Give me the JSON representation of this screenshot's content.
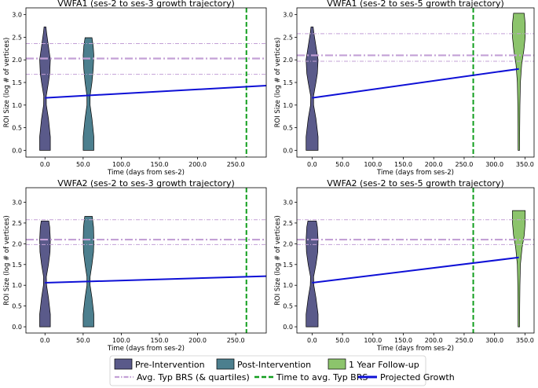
{
  "colors": {
    "pre": "#5a5a8a",
    "post": "#4c7f8e",
    "followup": "#8cc46c",
    "avg_line": "#c3a0d6",
    "time_line": "#119e1d",
    "projected": "#0e10d6"
  },
  "chart_data": [
    {
      "type": "violin",
      "title": "VWFA1  (ses-2 to ses-3 growth trajectory)",
      "xlabel": "Time (days from ses-2)",
      "ylabel": "ROI Size (log # of vertices)",
      "xlim": [
        -25,
        290
      ],
      "ylim": [
        -0.15,
        3.15
      ],
      "xticks": [
        0,
        50,
        100,
        150,
        200,
        250
      ],
      "xtick_labels": [
        "0.0",
        "50.0",
        "100.0",
        "150.0",
        "200.0",
        "250.0"
      ],
      "yticks": [
        0,
        0.5,
        1,
        1.5,
        2,
        2.5,
        3
      ],
      "ytick_labels": [
        "0.0",
        "0.5",
        "1.0",
        "1.5",
        "2.0",
        "2.5",
        "3.0"
      ],
      "violins": [
        {
          "group": "pre",
          "x": 0,
          "min": 0,
          "max": 2.73,
          "halfwidth": 8,
          "profile": [
            [
              0,
              0.85
            ],
            [
              0.3,
              0.85
            ],
            [
              0.7,
              0.55
            ],
            [
              1.0,
              0.22
            ],
            [
              1.2,
              0.2
            ],
            [
              1.5,
              0.55
            ],
            [
              1.7,
              0.75
            ],
            [
              2.0,
              0.85
            ],
            [
              2.3,
              0.55
            ],
            [
              2.6,
              0.25
            ],
            [
              2.73,
              0.15
            ]
          ]
        },
        {
          "group": "post",
          "x": 57,
          "min": 0,
          "max": 2.49,
          "halfwidth": 8,
          "profile": [
            [
              0,
              0.85
            ],
            [
              0.3,
              0.85
            ],
            [
              0.7,
              0.55
            ],
            [
              1.0,
              0.25
            ],
            [
              1.2,
              0.25
            ],
            [
              1.5,
              0.55
            ],
            [
              1.8,
              0.75
            ],
            [
              2.1,
              0.85
            ],
            [
              2.3,
              0.75
            ],
            [
              2.49,
              0.55
            ]
          ]
        }
      ],
      "avg_typ_brs": {
        "mean": 2.03,
        "quartiles": [
          1.68,
          2.36
        ]
      },
      "time_to_avg": 264,
      "projected_growth": {
        "x": [
          0,
          290
        ],
        "y": [
          1.16,
          1.43
        ]
      }
    },
    {
      "type": "violin",
      "title": "VWFA1  (ses-2 to ses-5 growth trajectory)",
      "xlabel": "Time (days from ses-2)",
      "ylabel": "ROI Size (log # of vertices)",
      "xlim": [
        -25,
        365
      ],
      "ylim": [
        -0.15,
        3.15
      ],
      "xticks": [
        0,
        50,
        100,
        150,
        200,
        250,
        300,
        350
      ],
      "xtick_labels": [
        "0.0",
        "50.0",
        "100.0",
        "150.0",
        "200.0",
        "250.0",
        "300.0",
        "350.0"
      ],
      "yticks": [
        0,
        0.5,
        1,
        1.5,
        2,
        2.5,
        3
      ],
      "ytick_labels": [
        "0.0",
        "0.5",
        "1.0",
        "1.5",
        "2.0",
        "2.5",
        "3.0"
      ],
      "violins": [
        {
          "group": "pre",
          "x": 0,
          "min": 0,
          "max": 2.73,
          "halfwidth": 9,
          "profile": [
            [
              0,
              0.85
            ],
            [
              0.3,
              0.85
            ],
            [
              0.7,
              0.55
            ],
            [
              1.0,
              0.22
            ],
            [
              1.2,
              0.2
            ],
            [
              1.5,
              0.55
            ],
            [
              1.7,
              0.75
            ],
            [
              2.0,
              0.85
            ],
            [
              2.3,
              0.55
            ],
            [
              2.6,
              0.25
            ],
            [
              2.73,
              0.15
            ]
          ]
        },
        {
          "group": "followup",
          "x": 340,
          "min": 0,
          "max": 3.03,
          "halfwidth": 9,
          "profile": [
            [
              0,
              0.1
            ],
            [
              0.5,
              0.12
            ],
            [
              1.0,
              0.15
            ],
            [
              1.5,
              0.22
            ],
            [
              1.9,
              0.4
            ],
            [
              2.2,
              0.7
            ],
            [
              2.5,
              0.9
            ],
            [
              2.8,
              0.9
            ],
            [
              3.03,
              0.75
            ]
          ]
        }
      ],
      "avg_typ_brs": {
        "mean": 2.1,
        "quartiles": [
          1.97,
          2.58
        ]
      },
      "time_to_avg": 265,
      "projected_growth": {
        "x": [
          0,
          340
        ],
        "y": [
          1.16,
          1.8
        ]
      }
    },
    {
      "type": "violin",
      "title": "VWFA2  (ses-2 to ses-3 growth trajectory)",
      "xlabel": "Time (days from ses-2)",
      "ylabel": "ROI Size (log # of vertices)",
      "xlim": [
        -25,
        290
      ],
      "ylim": [
        -0.15,
        3.35
      ],
      "xticks": [
        0,
        50,
        100,
        150,
        200,
        250
      ],
      "xtick_labels": [
        "0.0",
        "50.0",
        "100.0",
        "150.0",
        "200.0",
        "250.0"
      ],
      "yticks": [
        0,
        0.5,
        1,
        1.5,
        2,
        2.5,
        3
      ],
      "ytick_labels": [
        "0.0",
        "0.5",
        "1.0",
        "1.5",
        "2.0",
        "2.5",
        "3.0"
      ],
      "violins": [
        {
          "group": "pre",
          "x": 0,
          "min": 0,
          "max": 2.55,
          "halfwidth": 8,
          "profile": [
            [
              0,
              0.85
            ],
            [
              0.3,
              0.85
            ],
            [
              0.7,
              0.55
            ],
            [
              1.0,
              0.25
            ],
            [
              1.2,
              0.22
            ],
            [
              1.5,
              0.55
            ],
            [
              1.8,
              0.8
            ],
            [
              2.1,
              0.85
            ],
            [
              2.4,
              0.75
            ],
            [
              2.55,
              0.6
            ]
          ]
        },
        {
          "group": "post",
          "x": 57,
          "min": 0,
          "max": 2.66,
          "halfwidth": 8,
          "profile": [
            [
              0,
              0.85
            ],
            [
              0.3,
              0.85
            ],
            [
              0.7,
              0.55
            ],
            [
              1.0,
              0.25
            ],
            [
              1.2,
              0.25
            ],
            [
              1.5,
              0.55
            ],
            [
              1.8,
              0.8
            ],
            [
              2.1,
              0.85
            ],
            [
              2.4,
              0.8
            ],
            [
              2.66,
              0.6
            ]
          ]
        }
      ],
      "avg_typ_brs": {
        "mean": 2.1,
        "quartiles": [
          1.98,
          2.58
        ]
      },
      "time_to_avg": 264,
      "projected_growth": {
        "x": [
          0,
          290
        ],
        "y": [
          1.06,
          1.22
        ]
      }
    },
    {
      "type": "violin",
      "title": "VWFA2  (ses-2 to ses-5 growth trajectory)",
      "xlabel": "Time (days from ses-2)",
      "ylabel": "ROI Size (log # of vertices)",
      "xlim": [
        -25,
        365
      ],
      "ylim": [
        -0.15,
        3.35
      ],
      "xticks": [
        0,
        50,
        100,
        150,
        200,
        250,
        300,
        350
      ],
      "xtick_labels": [
        "0.0",
        "50.0",
        "100.0",
        "150.0",
        "200.0",
        "250.0",
        "300.0",
        "350.0"
      ],
      "yticks": [
        0,
        0.5,
        1,
        1.5,
        2,
        2.5,
        3
      ],
      "ytick_labels": [
        "0.0",
        "0.5",
        "1.0",
        "1.5",
        "2.0",
        "2.5",
        "3.0"
      ],
      "violins": [
        {
          "group": "pre",
          "x": 0,
          "min": 0,
          "max": 2.55,
          "halfwidth": 9,
          "profile": [
            [
              0,
              0.85
            ],
            [
              0.3,
              0.85
            ],
            [
              0.7,
              0.55
            ],
            [
              1.0,
              0.25
            ],
            [
              1.2,
              0.22
            ],
            [
              1.5,
              0.55
            ],
            [
              1.8,
              0.8
            ],
            [
              2.1,
              0.85
            ],
            [
              2.4,
              0.75
            ],
            [
              2.55,
              0.6
            ]
          ]
        },
        {
          "group": "followup",
          "x": 340,
          "min": 0,
          "max": 2.8,
          "halfwidth": 9,
          "profile": [
            [
              0,
              0.1
            ],
            [
              0.5,
              0.12
            ],
            [
              1.0,
              0.15
            ],
            [
              1.5,
              0.22
            ],
            [
              1.9,
              0.45
            ],
            [
              2.2,
              0.75
            ],
            [
              2.5,
              0.9
            ],
            [
              2.8,
              0.9
            ]
          ]
        }
      ],
      "avg_typ_brs": {
        "mean": 2.1,
        "quartiles": [
          1.98,
          2.58
        ]
      },
      "time_to_avg": 265,
      "projected_growth": {
        "x": [
          0,
          340
        ],
        "y": [
          1.06,
          1.67
        ]
      }
    }
  ],
  "legend": {
    "row1": [
      {
        "group": "pre",
        "label": "Pre-Intervention"
      },
      {
        "group": "post",
        "label": "Post-Intervention"
      },
      {
        "group": "followup",
        "label": "1 Year Follow-up"
      }
    ],
    "row2": [
      {
        "kind": "avg",
        "label": "Avg. Typ BRS (& quartiles)"
      },
      {
        "kind": "time",
        "label": "Time to avg. Typ BRS"
      },
      {
        "kind": "projected",
        "label": "Projected Growth"
      }
    ]
  }
}
